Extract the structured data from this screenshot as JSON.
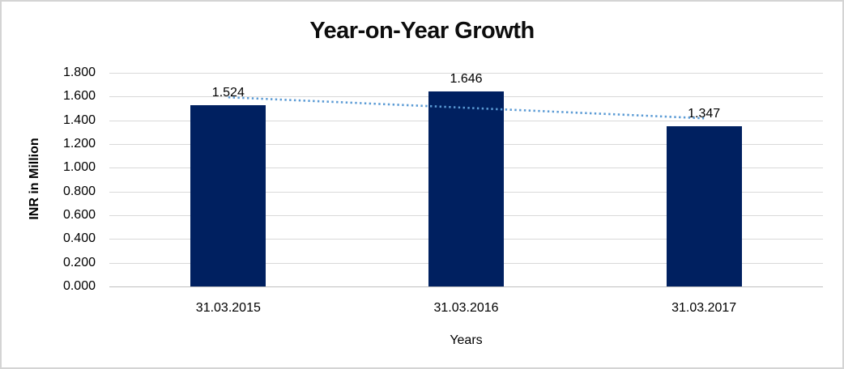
{
  "chart_data": {
    "type": "bar",
    "title": "Year-on-Year Growth",
    "xlabel": "Years",
    "ylabel": "INR in Million",
    "categories": [
      "31.03.2015",
      "31.03.2016",
      "31.03.2017"
    ],
    "values": [
      1.524,
      1.646,
      1.347
    ],
    "data_labels": [
      "1.524",
      "1.646",
      "1.347"
    ],
    "y_ticks": [
      "0.000",
      "0.200",
      "0.400",
      "0.600",
      "0.800",
      "1.000",
      "1.200",
      "1.400",
      "1.600",
      "1.800"
    ],
    "ylim": [
      0,
      1.8
    ],
    "grid": true,
    "legend": "none",
    "trendline": {
      "type": "linear",
      "style": "dotted",
      "start_value": 1.594,
      "end_value": 1.417,
      "color": "#5B9BD5"
    },
    "colors": {
      "bar": "#002060",
      "gridline": "#D9D9D9",
      "axis_line": "#BFBFBF",
      "text": "#000000",
      "frame_border": "#D4D4D4"
    }
  }
}
